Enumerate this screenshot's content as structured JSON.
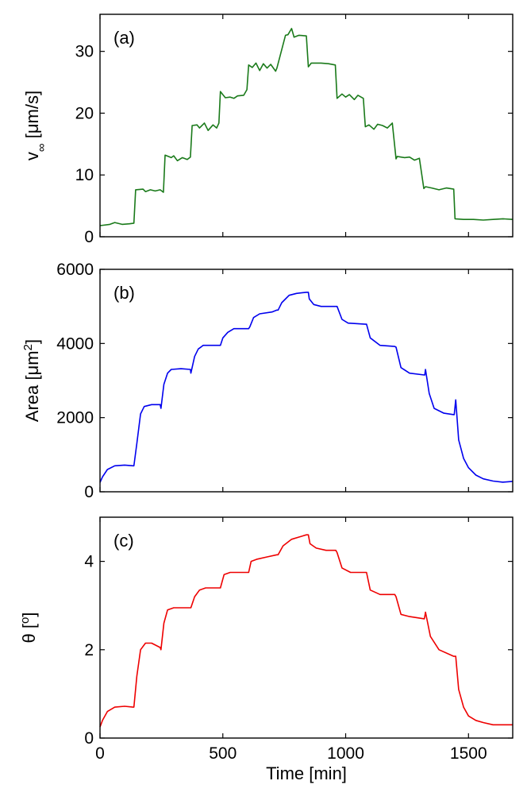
{
  "chart_data": [
    {
      "type": "line",
      "panel_label": "(a)",
      "ylabel_main": "v",
      "ylabel_sub": "∞",
      "ylabel_units": " [μm/s]",
      "xlabel": "",
      "xlim": [
        0,
        1680
      ],
      "ylim": [
        0,
        36
      ],
      "xticks": [
        0,
        500,
        1000,
        1500
      ],
      "yticks": [
        0,
        10,
        20,
        30
      ],
      "color": "#1a7a1a",
      "series": [
        {
          "x": [
            0,
            40,
            60,
            90,
            120,
            138,
            145,
            175,
            185,
            205,
            225,
            245,
            258,
            265,
            290,
            300,
            315,
            335,
            355,
            368,
            375,
            395,
            405,
            425,
            440,
            460,
            475,
            484,
            490,
            510,
            530,
            545,
            560,
            585,
            598,
            605,
            620,
            635,
            650,
            665,
            680,
            695,
            715,
            720,
            755,
            765,
            780,
            790,
            810,
            840,
            848,
            860,
            900,
            930,
            958,
            965,
            985,
            1000,
            1015,
            1035,
            1050,
            1072,
            1080,
            1095,
            1115,
            1130,
            1150,
            1170,
            1190,
            1205,
            1210,
            1240,
            1260,
            1280,
            1300,
            1318,
            1325,
            1350,
            1380,
            1410,
            1440,
            1445,
            1480,
            1520,
            1560,
            1600,
            1640,
            1680
          ],
          "y": [
            1.8,
            2.0,
            2.3,
            2.0,
            2.1,
            2.2,
            7.6,
            7.7,
            7.3,
            7.6,
            7.4,
            7.6,
            7.2,
            13.2,
            12.8,
            13.1,
            12.3,
            12.8,
            12.5,
            12.9,
            18.0,
            18.1,
            17.6,
            18.4,
            17.2,
            18.1,
            17.6,
            18.4,
            23.5,
            22.5,
            22.6,
            22.4,
            22.8,
            22.9,
            23.8,
            27.8,
            27.4,
            28.1,
            26.9,
            28.0,
            27.3,
            27.9,
            26.8,
            27.3,
            32.6,
            32.7,
            33.7,
            32.3,
            32.6,
            32.5,
            27.5,
            28.1,
            28.1,
            28.0,
            27.8,
            22.4,
            23.1,
            22.6,
            23.0,
            22.2,
            22.9,
            22.4,
            17.8,
            18.1,
            17.4,
            18.2,
            18.0,
            17.6,
            18.4,
            12.6,
            13.0,
            12.8,
            12.9,
            12.4,
            12.7,
            7.8,
            8.1,
            7.9,
            7.6,
            7.9,
            7.7,
            2.9,
            2.8,
            2.8,
            2.7,
            2.8,
            2.9,
            2.8
          ]
        }
      ]
    },
    {
      "type": "line",
      "panel_label": "(b)",
      "ylabel_main": "Area [μm",
      "ylabel_sup": "2",
      "ylabel_end": "]",
      "xlabel": "",
      "xlim": [
        0,
        1680
      ],
      "ylim": [
        0,
        6000
      ],
      "xticks": [
        0,
        500,
        1000,
        1500
      ],
      "yticks": [
        0,
        2000,
        4000,
        6000
      ],
      "color": "#0000ee",
      "series": [
        {
          "x": [
            0,
            10,
            30,
            60,
            100,
            135,
            138,
            150,
            165,
            180,
            210,
            245,
            248,
            260,
            275,
            290,
            330,
            368,
            370,
            385,
            400,
            420,
            460,
            488,
            490,
            500,
            520,
            545,
            590,
            605,
            610,
            625,
            650,
            700,
            720,
            725,
            740,
            770,
            800,
            840,
            848,
            852,
            870,
            900,
            960,
            965,
            985,
            1010,
            1080,
            1085,
            1100,
            1140,
            1200,
            1205,
            1225,
            1260,
            1320,
            1322,
            1325,
            1340,
            1360,
            1400,
            1440,
            1442,
            1448,
            1460,
            1480,
            1500,
            1530,
            1560,
            1600,
            1640,
            1680
          ],
          "y": [
            250,
            400,
            600,
            700,
            720,
            700,
            700,
            1300,
            2100,
            2300,
            2350,
            2350,
            2250,
            2900,
            3200,
            3300,
            3320,
            3300,
            3200,
            3650,
            3850,
            3950,
            3950,
            3950,
            3950,
            4150,
            4300,
            4400,
            4400,
            4400,
            4450,
            4700,
            4800,
            4850,
            4900,
            4900,
            5100,
            5300,
            5350,
            5380,
            5380,
            5200,
            5050,
            5000,
            5000,
            5000,
            4650,
            4550,
            4520,
            4520,
            4150,
            3950,
            3920,
            3900,
            3350,
            3200,
            3150,
            3150,
            3300,
            2650,
            2250,
            2120,
            2080,
            2080,
            2480,
            1400,
            900,
            650,
            450,
            350,
            290,
            260,
            280
          ]
        }
      ]
    },
    {
      "type": "line",
      "panel_label": "(c)",
      "ylabel_main": "θ [",
      "ylabel_sup": "o",
      "ylabel_end": "]",
      "xlabel": "Time [min]",
      "xlim": [
        0,
        1680
      ],
      "ylim": [
        0,
        5
      ],
      "xticks": [
        0,
        500,
        1000,
        1500
      ],
      "yticks": [
        0,
        2,
        4
      ],
      "color": "#ee0000",
      "series": [
        {
          "x": [
            0,
            10,
            30,
            60,
            100,
            135,
            138,
            150,
            165,
            185,
            210,
            245,
            248,
            260,
            275,
            300,
            340,
            368,
            370,
            385,
            405,
            430,
            470,
            488,
            490,
            505,
            530,
            560,
            600,
            605,
            615,
            640,
            680,
            720,
            725,
            745,
            780,
            810,
            840,
            848,
            855,
            880,
            920,
            960,
            965,
            985,
            1020,
            1080,
            1085,
            1100,
            1140,
            1200,
            1205,
            1225,
            1260,
            1320,
            1322,
            1325,
            1345,
            1380,
            1440,
            1442,
            1448,
            1460,
            1480,
            1500,
            1530,
            1560,
            1600,
            1640,
            1680
          ],
          "y": [
            0.25,
            0.4,
            0.6,
            0.7,
            0.72,
            0.7,
            0.7,
            1.4,
            2.0,
            2.15,
            2.15,
            2.05,
            2.0,
            2.6,
            2.9,
            2.95,
            2.95,
            2.95,
            2.95,
            3.2,
            3.35,
            3.4,
            3.4,
            3.4,
            3.4,
            3.7,
            3.75,
            3.75,
            3.75,
            3.75,
            4.0,
            4.05,
            4.1,
            4.15,
            4.15,
            4.35,
            4.5,
            4.55,
            4.6,
            4.6,
            4.4,
            4.3,
            4.25,
            4.25,
            4.2,
            3.85,
            3.75,
            3.75,
            3.75,
            3.35,
            3.25,
            3.25,
            3.2,
            2.8,
            2.75,
            2.7,
            2.75,
            2.85,
            2.3,
            2.0,
            1.85,
            1.85,
            1.85,
            1.1,
            0.7,
            0.5,
            0.4,
            0.35,
            0.3,
            0.3,
            0.3
          ]
        }
      ]
    }
  ]
}
